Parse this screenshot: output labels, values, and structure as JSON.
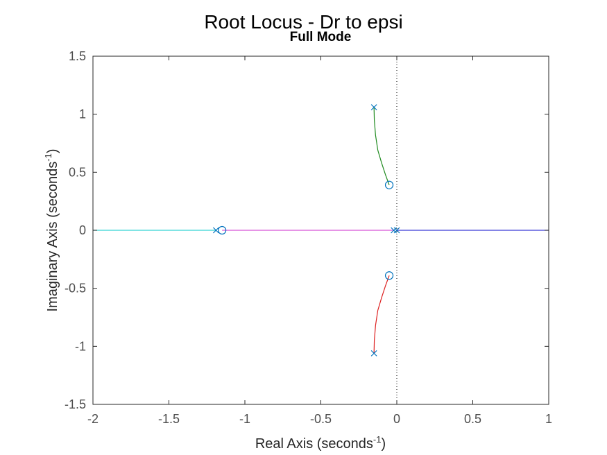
{
  "chart_data": {
    "type": "line",
    "title": "Root Locus - Dr to epsi",
    "subtitle": "Full Mode",
    "xlabel": {
      "main": "Real Axis (seconds",
      "sup": "-1",
      "close": ")"
    },
    "ylabel": {
      "main": "Imaginary Axis (seconds",
      "sup": "-1",
      "close": ")"
    },
    "xlim": [
      -2,
      1
    ],
    "ylim": [
      -1.5,
      1.5
    ],
    "xticks": [
      {
        "value": -2,
        "label": "-2"
      },
      {
        "value": -1.5,
        "label": "-1.5"
      },
      {
        "value": -1,
        "label": "-1"
      },
      {
        "value": -0.5,
        "label": "-0.5"
      },
      {
        "value": 0,
        "label": "0"
      },
      {
        "value": 0.5,
        "label": "0.5"
      },
      {
        "value": 1,
        "label": "1"
      }
    ],
    "yticks": [
      {
        "value": -1.5,
        "label": "-1.5"
      },
      {
        "value": -1,
        "label": "-1"
      },
      {
        "value": -0.5,
        "label": "-0.5"
      },
      {
        "value": 0,
        "label": "0"
      },
      {
        "value": 0.5,
        "label": "0.5"
      },
      {
        "value": 1,
        "label": "1"
      },
      {
        "value": 1.5,
        "label": "1.5"
      }
    ],
    "grid": false,
    "colors": {
      "marker": "#0072bd",
      "branch_cyan": "#35d3d3",
      "branch_magenta": "#d855d8",
      "branch_blue": "#3a3ad8",
      "branch_green": "#1e8a1e",
      "branch_red": "#dd1f1f",
      "zero_line": "#000000"
    },
    "poles": [
      {
        "x": -0.15,
        "y": 1.06
      },
      {
        "x": -0.15,
        "y": -1.06
      },
      {
        "x": -1.19,
        "y": 0
      },
      {
        "x": -0.02,
        "y": 0
      },
      {
        "x": 0.0,
        "y": 0
      }
    ],
    "zeros": [
      {
        "x": -0.05,
        "y": 0.39
      },
      {
        "x": -0.05,
        "y": -0.39
      },
      {
        "x": -1.15,
        "y": 0
      }
    ],
    "series": [
      {
        "color_key": "branch_green",
        "x": [
          -0.15,
          -0.148,
          -0.14,
          -0.125,
          -0.1,
          -0.075,
          -0.05
        ],
        "y": [
          1.06,
          0.95,
          0.82,
          0.69,
          0.58,
          0.48,
          0.39
        ]
      },
      {
        "color_key": "branch_red",
        "x": [
          -0.15,
          -0.148,
          -0.14,
          -0.125,
          -0.1,
          -0.075,
          -0.05
        ],
        "y": [
          -1.06,
          -0.95,
          -0.82,
          -0.69,
          -0.58,
          -0.48,
          -0.39
        ]
      },
      {
        "color_key": "branch_cyan",
        "x": [
          -1.19,
          -2
        ],
        "y": [
          0,
          0
        ]
      },
      {
        "color_key": "branch_magenta",
        "x": [
          -1.15,
          -0.02
        ],
        "y": [
          0,
          0
        ]
      },
      {
        "color_key": "branch_blue",
        "x": [
          0.0,
          1
        ],
        "y": [
          0,
          0
        ]
      }
    ]
  }
}
